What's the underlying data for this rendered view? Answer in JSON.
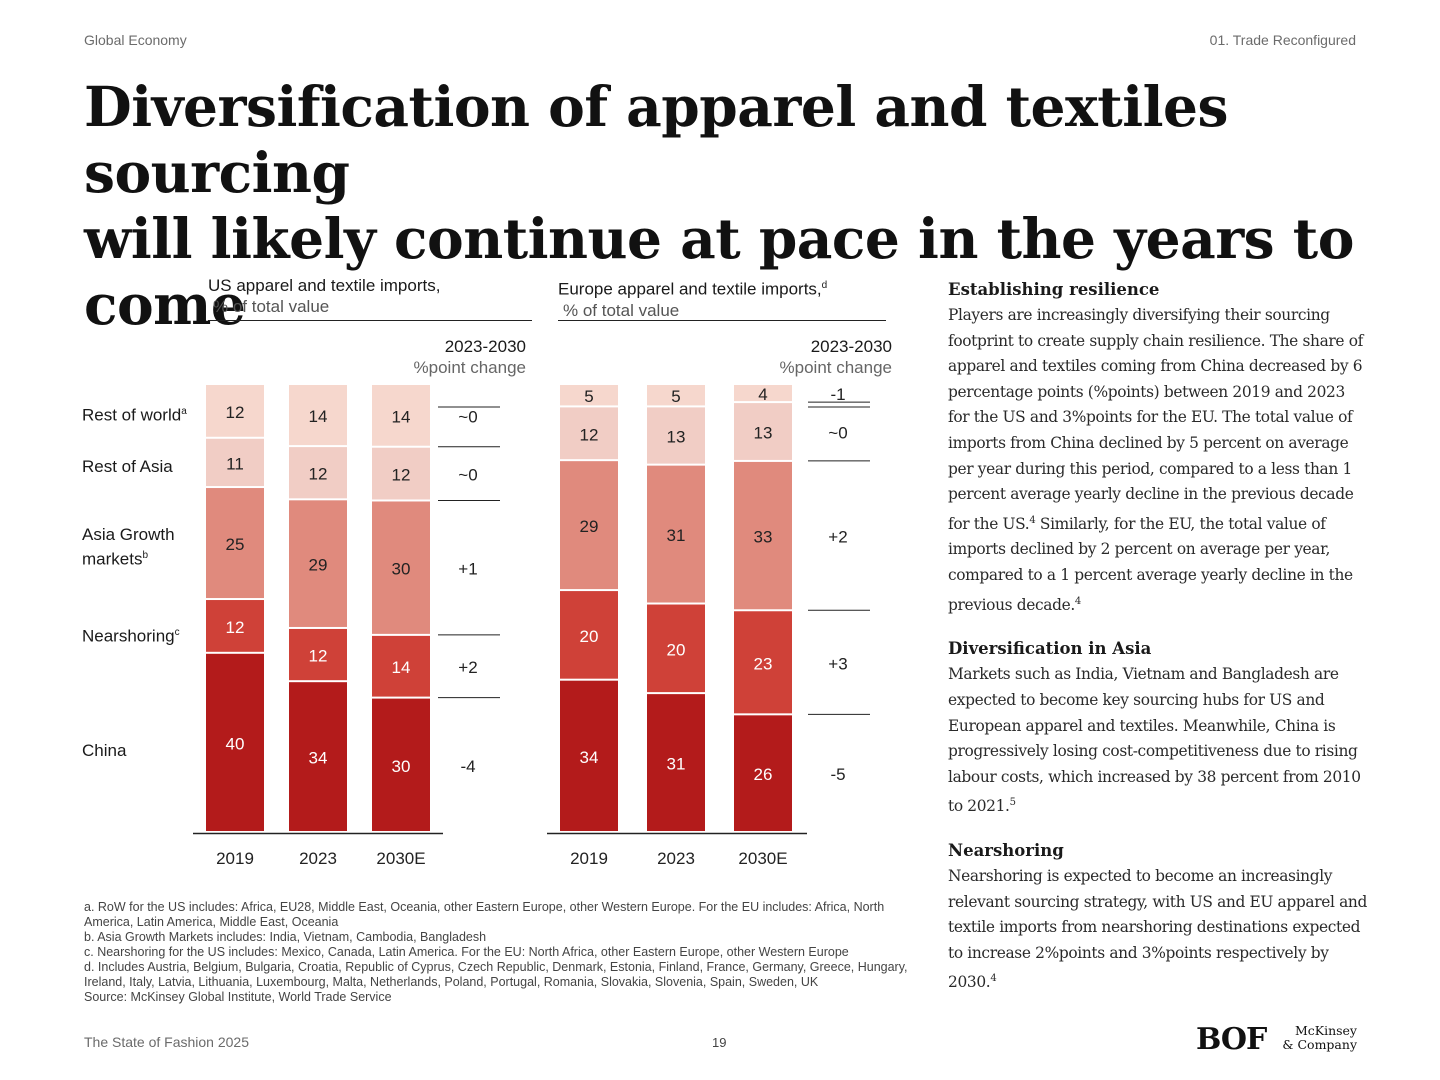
{
  "header": {
    "left": "Global Economy",
    "right": "01. Trade Reconfigured"
  },
  "title_line1": "Diversification of apparel and textiles sourcing",
  "title_line2": "will likely continue at pace in the years to come",
  "colors": {
    "china": "#b31b1b",
    "nearshoring": "#cf4138",
    "asia_growth": "#e08a7d",
    "rest_of_asia": "#f1cdc5",
    "rest_of_world": "#f6d7cd"
  },
  "row_labels": {
    "row": "Rest of world",
    "row_sup": "a",
    "roa": "Rest of Asia",
    "agm_1": "Asia Growth",
    "agm_2": "markets",
    "agm_sup": "b",
    "near": "Nearshoring",
    "near_sup": "c",
    "china": "China"
  },
  "change_header": {
    "line1": "2023-2030",
    "line2": "%point change"
  },
  "chart_data": [
    {
      "type": "bar",
      "stacked": true,
      "title": "US apparel and textile imports,",
      "subtitle": "% of total value",
      "categories": [
        "2019",
        "2023",
        "2030E"
      ],
      "series": [
        {
          "name": "China",
          "values": [
            40,
            34,
            30
          ]
        },
        {
          "name": "Nearshoring",
          "values": [
            12,
            12,
            14
          ]
        },
        {
          "name": "Asia Growth markets",
          "values": [
            25,
            29,
            30
          ]
        },
        {
          "name": "Rest of Asia",
          "values": [
            11,
            12,
            12
          ]
        },
        {
          "name": "Rest of world",
          "values": [
            12,
            14,
            14
          ]
        }
      ],
      "point_change_2023_2030": [
        "-4",
        "+2",
        "+1",
        "~0",
        "~0"
      ]
    },
    {
      "type": "bar",
      "stacked": true,
      "title": "Europe apparel and textile imports,",
      "title_sup": "d",
      "subtitle": "% of total value",
      "categories": [
        "2019",
        "2023",
        "2030E"
      ],
      "series": [
        {
          "name": "China",
          "values": [
            34,
            31,
            26
          ]
        },
        {
          "name": "Nearshoring",
          "values": [
            20,
            20,
            23
          ]
        },
        {
          "name": "Asia Growth markets",
          "values": [
            29,
            31,
            33
          ]
        },
        {
          "name": "Rest of Asia",
          "values": [
            12,
            13,
            13
          ]
        },
        {
          "name": "Rest of world",
          "values": [
            5,
            5,
            4
          ]
        }
      ],
      "point_change_2023_2030": [
        "-5",
        "+3",
        "+2",
        "~0",
        "-1"
      ]
    }
  ],
  "footnotes": [
    "a. RoW for the US includes: Africa, EU28, Middle East, Oceania, other Eastern Europe, other Western Europe. For the EU includes: Africa, North America, Latin America, Middle East, Oceania",
    "b. Asia Growth Markets includes: India, Vietnam, Cambodia, Bangladesh",
    "c. Nearshoring for the US includes: Mexico, Canada, Latin America. For the EU: North Africa, other Eastern Europe, other Western Europe",
    "d. Includes Austria, Belgium, Bulgaria, Croatia, Republic of Cyprus, Czech Republic, Denmark, Estonia, Finland, France, Germany, Greece, Hungary, Ireland, Italy, Latvia, Lithuania, Luxembourg, Malta, Netherlands, Poland, Portugal, Romania, Slovakia, Slovenia, Spain, Sweden, UK",
    "Source: McKinsey Global Institute, World Trade Service"
  ],
  "sidebar": {
    "s1_title": "Establishing resilience",
    "s1_body": "Players are increasingly diversifying their sourcing footprint to create supply chain resilience. The share of apparel and textiles coming from China decreased by 6 percentage points (%points) between 2019 and 2023 for the US and 3%points for the EU. The total value of imports from China declined by 5 percent on average per year during this period, compared to a less than 1 percent average yearly decline in the previous decade for the US.",
    "s1_sup1": "4",
    "s1_body2": " Similarly, for the EU, the total value of imports declined by 2 percent on average per year, compared to a 1 percent average yearly decline in the previous decade.",
    "s1_sup2": "4",
    "s2_title": "Diversification in Asia",
    "s2_body": "Markets such as India, Vietnam and Bangladesh are expected to become key sourcing hubs for US and European apparel and textiles. Meanwhile, China is progressively losing cost-competitiveness due to rising labour costs, which increased by 38 percent from 2010 to 2021.",
    "s2_sup": "5",
    "s3_title": "Nearshoring",
    "s3_body": "Nearshoring is expected to become an increasingly relevant sourcing strategy, with US and EU apparel and textile imports from nearshoring destinations expected to increase 2%points and 3%points respectively by 2030.",
    "s3_sup": "4"
  },
  "footer": {
    "publication": "The State of Fashion 2025",
    "page": "19",
    "logo_bof": "BOF",
    "logo_mck_1": "McKinsey",
    "logo_mck_2": "& Company"
  }
}
